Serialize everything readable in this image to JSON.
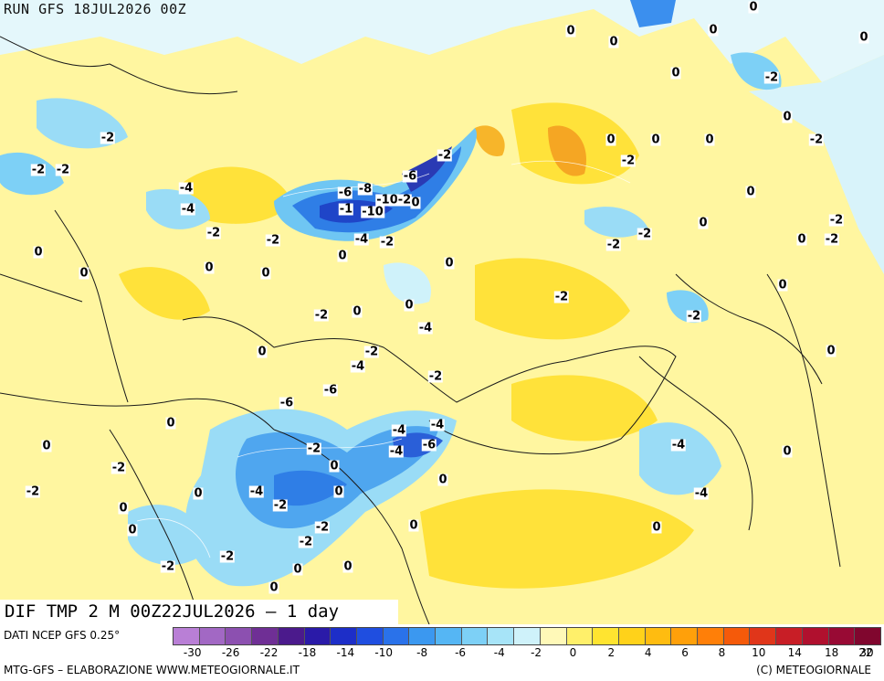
{
  "header": {
    "run": "RUN GFS 18JUL2026 00Z"
  },
  "map": {
    "title": "DIF TMP 2 M 00Z22JUL2026 – 1 day",
    "contour_labels": [
      "0",
      "0",
      "0",
      "0",
      "0",
      "-2",
      "-2",
      "-2",
      "-2",
      "-4",
      "-2",
      "-4",
      "-6",
      "-8",
      "-1",
      "-10",
      "-10",
      "-2",
      "-4",
      "-2",
      "0",
      "-6",
      "-2",
      "0",
      "-2",
      "0",
      "0",
      "0",
      "0",
      "0",
      "0",
      "-2",
      "-2",
      "-2",
      "-2",
      "-2",
      "0",
      "0",
      "0",
      "-2",
      "0",
      "-2",
      "0",
      "-2",
      "0",
      "0",
      "0",
      "0",
      "-2",
      "-4",
      "-6",
      "-6",
      "-4",
      "-4",
      "-4",
      "-6",
      "-2",
      "0",
      "-2",
      "-4",
      "0",
      "-2",
      "-2",
      "0",
      "-2",
      "-2",
      "0",
      "0",
      "0",
      "0",
      "-2",
      "0",
      "-4",
      "-2",
      "0",
      "0",
      "0",
      "0",
      "-2",
      "0",
      "0",
      "0",
      "-2",
      "-4",
      "-4",
      "0",
      "0"
    ]
  },
  "colorbar": {
    "colors": [
      "#b97fd6",
      "#a268c4",
      "#8c50b0",
      "#6f2f95",
      "#4b1a8c",
      "#2a1aa8",
      "#1d2ec8",
      "#1f4ee0",
      "#2a72ea",
      "#3b98f0",
      "#55b6f4",
      "#7dd0f6",
      "#a7e4f8",
      "#cff2fa",
      "#fff9b8",
      "#fff06a",
      "#ffe430",
      "#ffd21a",
      "#ffbc10",
      "#ffa00a",
      "#ff7f08",
      "#f55a0a",
      "#e0361a",
      "#c81e26",
      "#b0102e",
      "#980a34",
      "#80062e"
    ],
    "tick_labels": [
      "-30",
      "-26",
      "-22",
      "-18",
      "-14",
      "-10",
      "-8",
      "-6",
      "-4",
      "-2",
      "0",
      "2",
      "4",
      "6",
      "8",
      "10",
      "14",
      "18",
      "22",
      "30"
    ]
  },
  "footer": {
    "source": "DATI NCEP GFS 0.25°",
    "credit": "MTG-GFS – ELABORAZIONE WWW.METEOGIORNALE.IT",
    "copyright": "(C) METEOGIORNALE"
  }
}
